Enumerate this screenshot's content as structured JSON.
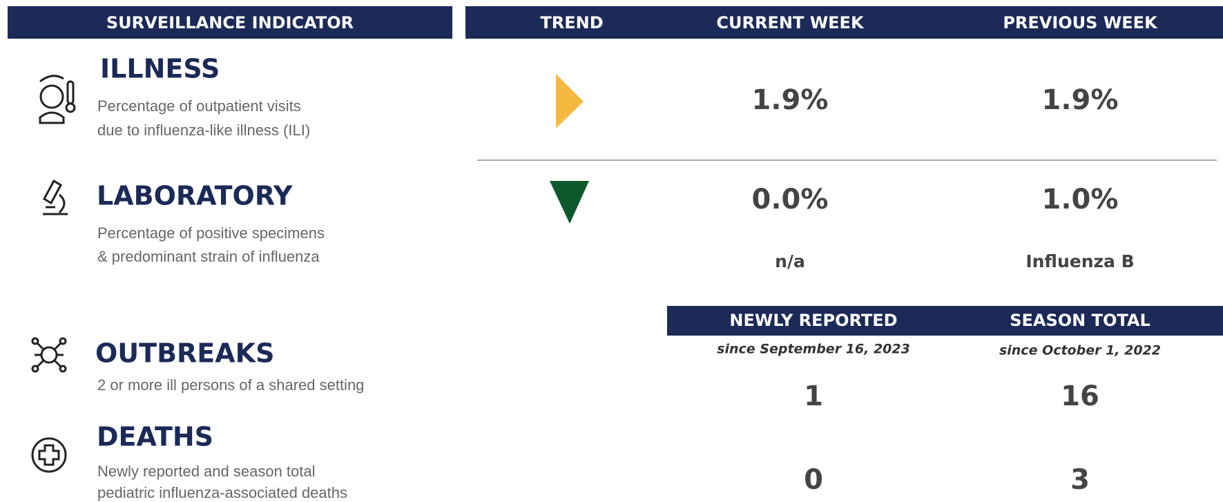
{
  "header": {
    "indicator": "SURVEILLANCE INDICATOR",
    "trend": "TREND",
    "current": "CURRENT WEEK",
    "previous": "PREVIOUS WEEK"
  },
  "illness": {
    "title": "ILLNESS",
    "description": [
      "Percentage of outpatient visits",
      "due to influenza-like illness (ILI)"
    ],
    "trend": "flat",
    "current": "1.9%",
    "previous": "1.9%"
  },
  "laboratory": {
    "title": "LABORATORY",
    "description": [
      "Percentage of positive specimens",
      "& predominant strain of influenza"
    ],
    "trend": "down",
    "current": "0.0%",
    "previous": "1.0%",
    "current_strain": "n/a",
    "previous_strain": "Influenza B"
  },
  "counts_header": {
    "newly": "NEWLY REPORTED",
    "newly_since": "since September 16, 2023",
    "season": "SEASON TOTAL",
    "season_since": "since October 1, 2022"
  },
  "outbreaks": {
    "title": "OUTBREAKS",
    "description": [
      "2 or more ill persons of a shared setting"
    ],
    "newly": "1",
    "season": "16"
  },
  "deaths": {
    "title": "DEATHS",
    "description": [
      "Newly reported and season total",
      "pediatric influenza-associated deaths"
    ],
    "newly": "0",
    "season": "3"
  }
}
